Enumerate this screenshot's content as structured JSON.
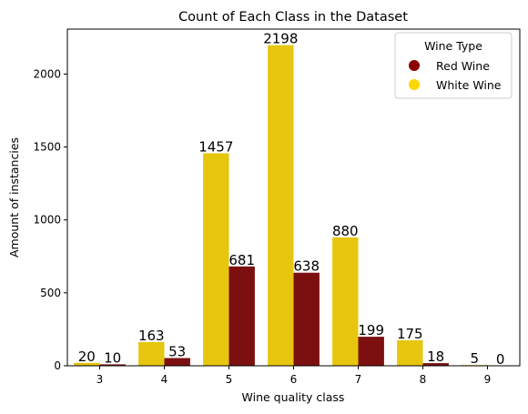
{
  "chart_data": {
    "type": "bar",
    "title": "Count of Each Class in the Dataset",
    "xlabel": "Wine quality class",
    "ylabel": "Amount of instancies",
    "categories": [
      "3",
      "4",
      "5",
      "6",
      "7",
      "8",
      "9"
    ],
    "series": [
      {
        "name": "White Wine",
        "color": "#e6c60f",
        "values": [
          20,
          163,
          1457,
          2198,
          880,
          175,
          5
        ]
      },
      {
        "name": "Red Wine",
        "color": "#7c1010",
        "values": [
          10,
          53,
          681,
          638,
          199,
          18,
          0
        ]
      }
    ],
    "ylim": [
      0,
      2308
    ],
    "yticks": [
      0,
      500,
      1000,
      1500,
      2000
    ],
    "legend": {
      "title": "Wine Type",
      "placement": "top-right",
      "entries": [
        {
          "label": "Red Wine",
          "color": "#8b0000"
        },
        {
          "label": "White Wine",
          "color": "#ffd700"
        }
      ]
    },
    "grid": false
  }
}
